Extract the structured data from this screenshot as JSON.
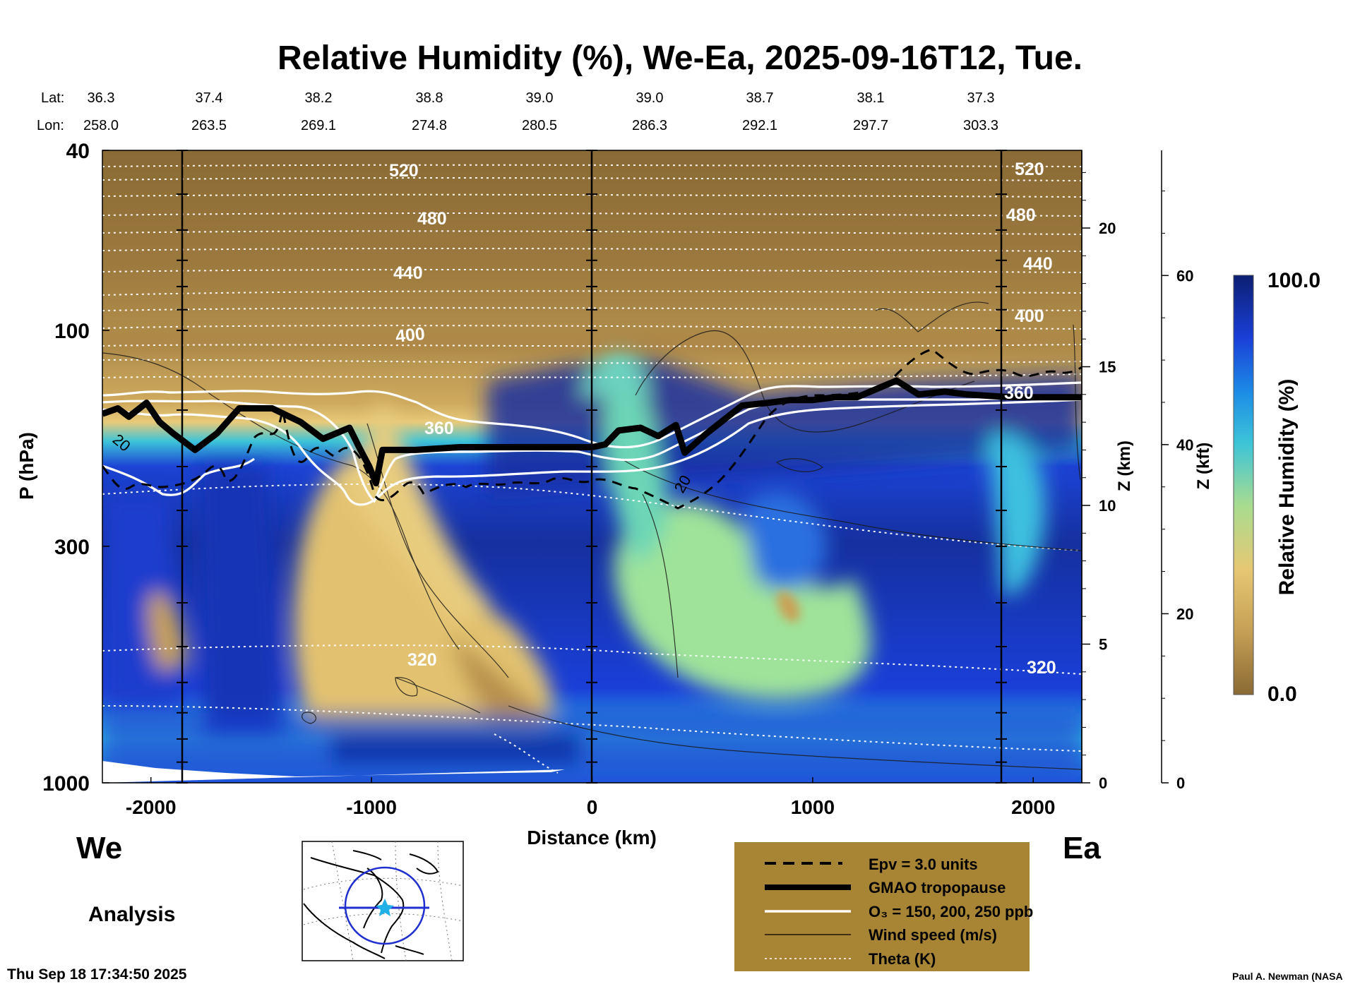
{
  "chart_data": {
    "type": "heatmap",
    "title": "Relative Humidity (%), We-Ea, 2025-09-16T12, Tue.",
    "xlabel": "Distance (km)",
    "ylabel": "P (hPa)",
    "xlim": [
      -2220,
      2220
    ],
    "ylim": [
      1000,
      40
    ],
    "y_scale": "log",
    "x_ticks": [
      "-2000",
      "-1000",
      "0",
      "1000",
      "2000"
    ],
    "x_tick_values": [
      -2000,
      -1000,
      0,
      1000,
      2000
    ],
    "y_ticks": [
      "40",
      "100",
      "300",
      "1000"
    ],
    "y_tick_values": [
      40,
      100,
      300,
      1000
    ],
    "z_km_label": "Z (km)",
    "z_km_ticks": [
      "0",
      "5",
      "10",
      "15",
      "20"
    ],
    "z_kft_label": "Z (kft)",
    "z_kft_ticks": [
      "0",
      "20",
      "40",
      "60"
    ],
    "lat_label": "Lat:",
    "lon_label": "Lon:",
    "lat": [
      "36.3",
      "37.4",
      "38.2",
      "38.8",
      "39.0",
      "39.0",
      "38.7",
      "38.1",
      "37.3"
    ],
    "lon": [
      "258.0",
      "263.5",
      "269.1",
      "274.8",
      "280.5",
      "286.3",
      "292.1",
      "297.7",
      "303.3"
    ],
    "grid": false,
    "colorbar": {
      "label": "Relative Humidity (%)",
      "max_label": "100.0",
      "min_label": "0.0",
      "range": [
        0,
        100
      ]
    },
    "theta_labels": [
      "520",
      "480",
      "440",
      "400",
      "360",
      "320"
    ],
    "theta_levels_K": [
      520,
      480,
      440,
      400,
      360,
      320
    ],
    "wind_label": "20",
    "tropopause_km": [
      13.3,
      13.5,
      13.2,
      13.7,
      13.0,
      12.6,
      12.0,
      12.6,
      13.5,
      13.5,
      13.0,
      12.4,
      12.8,
      12.0,
      11.4,
      10.8,
      12.0,
      12.0,
      12.1,
      12.1,
      12.1,
      12.1,
      12.2,
      12.7,
      12.8,
      12.5,
      12.9,
      11.9,
      12.6,
      13.6,
      13.7,
      13.8,
      13.8,
      13.9,
      13.9,
      14.5,
      14.0,
      14.1,
      14.0,
      13.9,
      13.9
    ],
    "tropopause_x_km": [
      -2220,
      -2150,
      -2100,
      -2020,
      -1960,
      -1900,
      -1800,
      -1700,
      -1600,
      -1450,
      -1320,
      -1220,
      -1100,
      -1050,
      -1010,
      -980,
      -950,
      -800,
      -600,
      -400,
      -200,
      0,
      60,
      120,
      220,
      300,
      380,
      420,
      520,
      680,
      800,
      900,
      1000,
      1100,
      1200,
      1380,
      1480,
      1600,
      1700,
      1900,
      2220
    ],
    "left_label": "We",
    "right_label": "Ea",
    "analysis_label": "Analysis",
    "legend": [
      "Epv = 3.0 units",
      "GMAO tropopause",
      "O₃ = 150, 200, 250 ppb",
      "Wind speed (m/s)",
      "Theta (K)"
    ],
    "timestamp": "Thu Sep 18 17:34:50 2025",
    "credit": "Paul A. Newman (NASA"
  },
  "colors": {
    "dry": "#8a6a35",
    "moist_dark": "#0d1a6e",
    "mid_blue": "#1e3fd0",
    "cyan": "#33c0e0",
    "green": "#8fdc90",
    "tan": "#e0c070",
    "legend_bg": "#a88535"
  }
}
